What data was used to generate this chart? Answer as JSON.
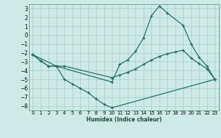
{
  "xlabel": "Humidex (Indice chaleur)",
  "bg_color": "#ceeae6",
  "grid_color": "#aacfcb",
  "line_color": "#1e6b5e",
  "spine_color": "#5a9a8a",
  "xlim": [
    -0.5,
    23.5
  ],
  "ylim": [
    -8.5,
    3.5
  ],
  "yticks": [
    3,
    2,
    1,
    0,
    -1,
    -2,
    -3,
    -4,
    -5,
    -6,
    -7,
    -8
  ],
  "xticks": [
    0,
    1,
    2,
    3,
    4,
    5,
    6,
    7,
    8,
    9,
    10,
    11,
    12,
    13,
    14,
    15,
    16,
    17,
    18,
    19,
    20,
    21,
    22,
    23
  ],
  "line1_x": [
    0,
    1,
    2,
    3,
    10,
    11,
    12,
    13,
    14,
    15,
    16,
    17,
    19,
    20,
    21,
    22,
    23
  ],
  "line1_y": [
    -2.2,
    -2.9,
    -3.5,
    -3.5,
    -5.3,
    -3.3,
    -2.8,
    -1.8,
    -0.3,
    2.2,
    3.3,
    2.5,
    1.1,
    -1.0,
    -2.5,
    -3.5,
    -5.0
  ],
  "line2_x": [
    0,
    1,
    2,
    3,
    4,
    5,
    6,
    7,
    8,
    9,
    10,
    23
  ],
  "line2_y": [
    -2.2,
    -2.9,
    -3.5,
    -3.5,
    -5.0,
    -5.5,
    -6.0,
    -6.5,
    -7.2,
    -7.8,
    -8.2,
    -5.0
  ],
  "line3_x": [
    0,
    3,
    4,
    10,
    11,
    12,
    13,
    14,
    15,
    16,
    17,
    18,
    19,
    20,
    21,
    22,
    23
  ],
  "line3_y": [
    -2.2,
    -3.5,
    -3.5,
    -4.8,
    -4.5,
    -4.2,
    -3.8,
    -3.3,
    -2.8,
    -2.4,
    -2.1,
    -1.9,
    -1.7,
    -2.6,
    -3.2,
    -3.8,
    -5.0
  ]
}
